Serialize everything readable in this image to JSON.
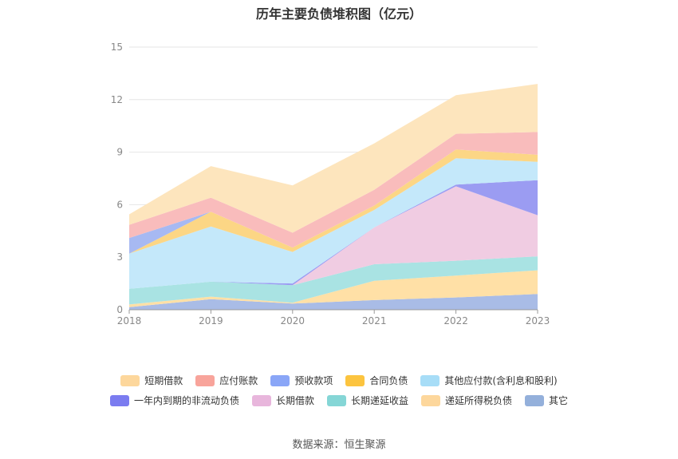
{
  "chart_data": {
    "type": "area",
    "title": "历年主要负债堆积图（亿元）",
    "xlabel": "",
    "ylabel": "",
    "categories": [
      "2018",
      "2019",
      "2020",
      "2021",
      "2022",
      "2023"
    ],
    "ylim": [
      0,
      15
    ],
    "yticks": [
      "0",
      "3",
      "6",
      "9",
      "12",
      "15"
    ],
    "grid": true,
    "legend_position": "bottom",
    "stacked": true,
    "series": [
      {
        "name": "其它",
        "color": "#a9bce6",
        "values": [
          0.15,
          0.6,
          0.35,
          0.55,
          0.7,
          0.9
        ]
      },
      {
        "name": "递延所得税负债",
        "color": "#ffe0a6",
        "values": [
          0.15,
          0.15,
          0.05,
          1.1,
          1.25,
          1.35
        ]
      },
      {
        "name": "长期递延收益",
        "color": "#a9e3e3",
        "values": [
          0.9,
          0.85,
          1.0,
          0.95,
          0.85,
          0.8
        ]
      },
      {
        "name": "长期借款",
        "color": "#f0cce2",
        "values": [
          0,
          0,
          0,
          2.1,
          4.25,
          2.35
        ]
      },
      {
        "name": "一年内到期的非流动负债",
        "color": "#9b9cf2",
        "values": [
          0,
          0,
          0.1,
          0,
          0.1,
          2.0
        ]
      },
      {
        "name": "其他应付款(含利息和股利)",
        "color": "#c4e8fa",
        "values": [
          2.0,
          3.15,
          1.8,
          1.0,
          1.5,
          1.05
        ]
      },
      {
        "name": "合同负债",
        "color": "#fcd685",
        "values": [
          0,
          0.85,
          0.25,
          0.25,
          0.5,
          0.4
        ]
      },
      {
        "name": "预收款项",
        "color": "#a7b9f2",
        "values": [
          0.9,
          0,
          0,
          0,
          0,
          0
        ]
      },
      {
        "name": "应付账款",
        "color": "#f9bcbc",
        "values": [
          0.75,
          0.8,
          0.85,
          0.9,
          0.9,
          1.3
        ]
      },
      {
        "name": "短期借款",
        "color": "#fde5bd",
        "values": [
          0.6,
          1.8,
          2.7,
          2.65,
          2.2,
          2.75
        ]
      }
    ]
  },
  "legend": {
    "row1": [
      {
        "label": "短期借款",
        "color": "#fdd79c"
      },
      {
        "label": "应付账款",
        "color": "#f8a49b"
      },
      {
        "label": "预收款项",
        "color": "#8aa6f7"
      },
      {
        "label": "合同负债",
        "color": "#fcc43f"
      },
      {
        "label": "其他应付款(含利息和股利)",
        "color": "#a7ddf7"
      }
    ],
    "row2": [
      {
        "label": "一年内到期的非流动负债",
        "color": "#7b7cf0"
      },
      {
        "label": "长期借款",
        "color": "#e8b6dc"
      },
      {
        "label": "长期递延收益",
        "color": "#85d6d6"
      },
      {
        "label": "递延所得税负债",
        "color": "#fdd79c"
      },
      {
        "label": "其它",
        "color": "#94b0db"
      }
    ]
  },
  "source": "数据来源：恒生聚源"
}
